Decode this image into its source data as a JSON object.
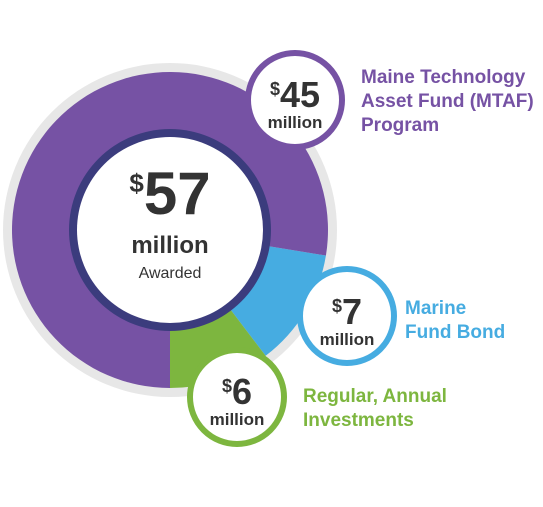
{
  "chart_data": {
    "type": "pie",
    "total": {
      "currency": "$",
      "value": "57",
      "unit": "million",
      "caption": "Awarded"
    },
    "slices": [
      {
        "label_lines": [
          "Maine Technology",
          "Asset Fund (MTAF)",
          "Program"
        ],
        "currency": "$",
        "value": 45,
        "unit": "million",
        "color": "#7652a4"
      },
      {
        "label_lines": [
          "Marine",
          "Fund Bond"
        ],
        "currency": "$",
        "value": 7,
        "unit": "million",
        "color": "#46ace1"
      },
      {
        "label_lines": [
          "Regular, Annual",
          "Investments"
        ],
        "currency": "$",
        "value": 6,
        "unit": "million",
        "color": "#7db63f"
      }
    ]
  }
}
